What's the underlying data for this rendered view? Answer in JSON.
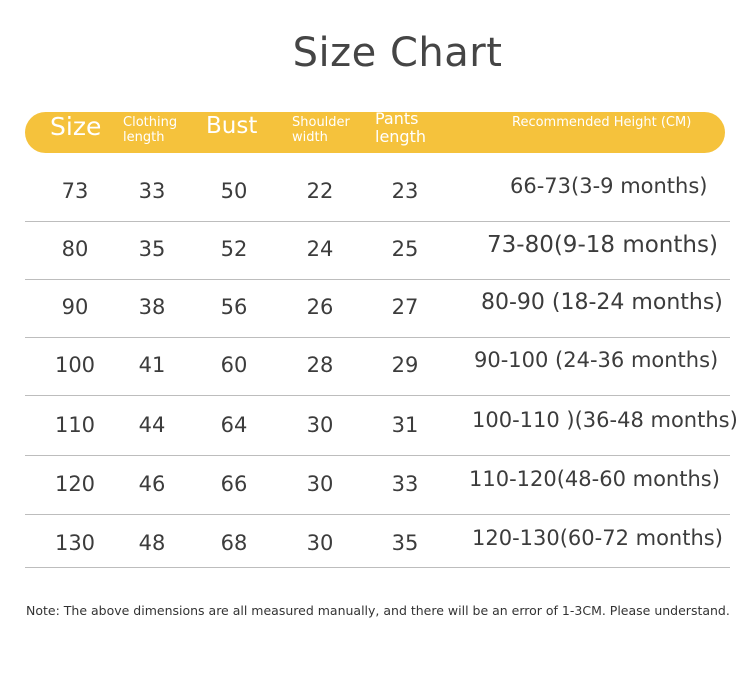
{
  "title": "Size Chart",
  "headers": {
    "size": "Size",
    "clothing_length": "Clothing\nlength",
    "bust": "Bust",
    "shoulder_width": "Shoulder\nwidth",
    "pants_length": "Pants\nlength",
    "recommended_height": "Recommended Height (CM)"
  },
  "rows": [
    {
      "size": "73",
      "clothing_length": "33",
      "bust": "50",
      "shoulder": "22",
      "pants": "23",
      "height": "66-73(3-9 months)"
    },
    {
      "size": "80",
      "clothing_length": "35",
      "bust": "52",
      "shoulder": "24",
      "pants": "25",
      "height": "73-80(9-18 months)"
    },
    {
      "size": "90",
      "clothing_length": "38",
      "bust": "56",
      "shoulder": "26",
      "pants": "27",
      "height": "80-90 (18-24 months)"
    },
    {
      "size": "100",
      "clothing_length": "41",
      "bust": "60",
      "shoulder": "28",
      "pants": "29",
      "height": "90-100 (24-36 months)"
    },
    {
      "size": "110",
      "clothing_length": "44",
      "bust": "64",
      "shoulder": "30",
      "pants": "31",
      "height": "100-110 )(36-48 months)"
    },
    {
      "size": "120",
      "clothing_length": "46",
      "bust": "66",
      "shoulder": "30",
      "pants": "33",
      "height": "110-120(48-60 months)"
    },
    {
      "size": "130",
      "clothing_length": "48",
      "bust": "68",
      "shoulder": "30",
      "pants": "35",
      "height": "120-130(60-72 months)"
    }
  ],
  "note": "Note: The above dimensions are all measured manually, and there will be an error of 1-3CM. Please understand.",
  "colors": {
    "header_bar": "#f5c23c",
    "header_text": "#ffffff"
  }
}
